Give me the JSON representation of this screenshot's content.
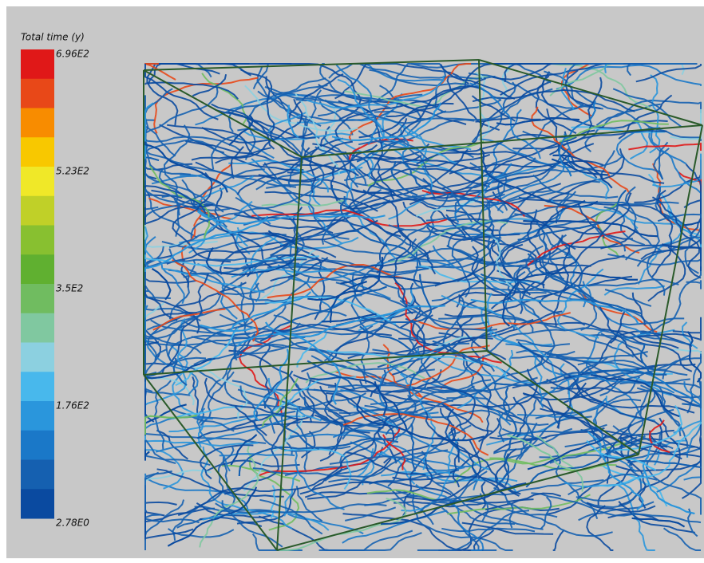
{
  "legend": {
    "title": "Total time (y)",
    "labels": [
      "6.96E2",
      "5.23E2",
      "3.5E2",
      "1.76E2",
      "2.78E0"
    ],
    "colors": [
      "#e01818",
      "#e84818",
      "#f88c00",
      "#f8c800",
      "#f0e828",
      "#c0d028",
      "#88c030",
      "#60b030",
      "#70bc60",
      "#80c8a0",
      "#8cd0e0",
      "#48b8ec",
      "#2a96dc",
      "#1a78c8",
      "#1560b0",
      "#0a4aa0"
    ]
  }
}
